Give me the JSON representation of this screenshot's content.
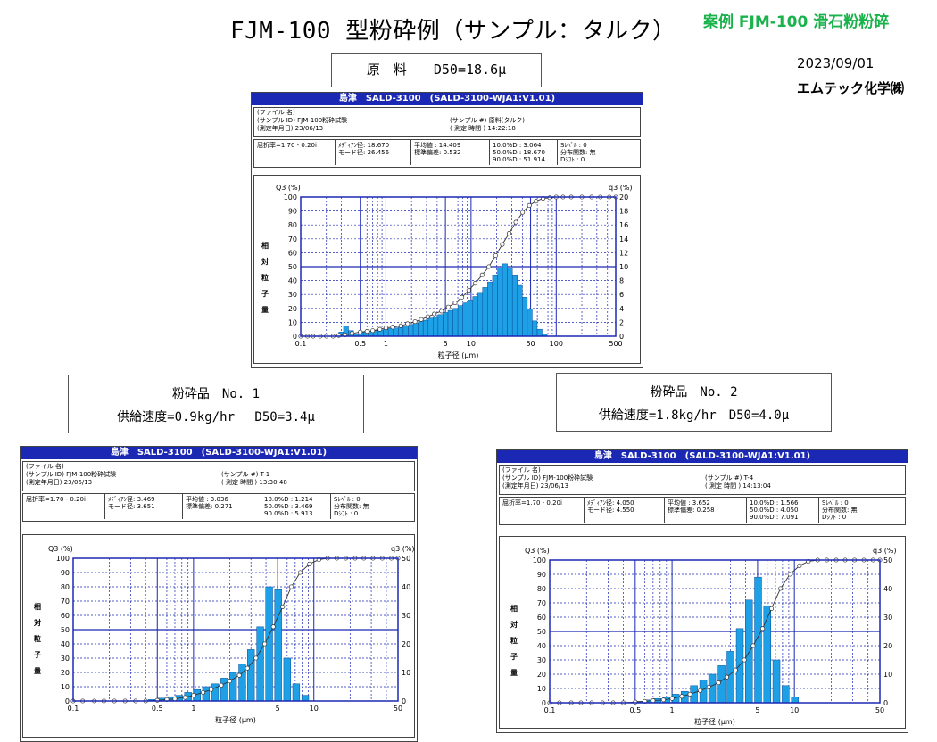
{
  "header": {
    "title": "FJM-100 型粉砕例（サンプル：タルク）",
    "top_right": "案例 FJM-100 滑石粉粉碎",
    "date": "2023/09/01",
    "company": "エムテック化学㈱"
  },
  "boxes": {
    "raw": "原　料　　D50=18.6μ",
    "p1_line1": "粉砕品　No. 1",
    "p1_line2": "供給速度=0.9kg/hr　 D50=3.4μ",
    "p2_line1": "粉砕品　No. 2",
    "p2_line2": "供給速度=1.8kg/hr　D50=4.0μ"
  },
  "panels": [
    {
      "header": "島津　SALD-3100　(SALD-3100-WJA1:V1.01)",
      "info_lines": [
        "(ファイル 名)",
        "(サンプル ID) FJM-100粉砕試験",
        "(測定年月日) 23/06/13"
      ],
      "sample_no": "(サンプル #) 原料(タルク)",
      "meas_time": "( 測定 時間 ) 14:22:18",
      "refr": "屈折率=1.70 - 0.20i",
      "stats1": [
        "ﾒﾃﾞｨｱﾝ径:  18.670",
        "モード径:  26.456"
      ],
      "stats2": [
        "平均値  :  14.409",
        "標準偏差:   0.532"
      ],
      "stats3": [
        "10.0%D :     3.064",
        "50.0%D :   18.670",
        "90.0%D :   51.914"
      ],
      "stats4": [
        "Sﾚﾍﾞﾙ   : 0",
        "分布関数: 無",
        "Dｼﾌﾄ     : 0"
      ]
    },
    {
      "header": "島津　SALD-3100　(SALD-3100-WJA1:V1.01)",
      "info_lines": [
        "(ファイル 名)",
        "(サンプル ID) FJM-100粉砕試験",
        "(測定年月日) 23/06/13"
      ],
      "sample_no": "(サンプル #) T-1",
      "meas_time": "( 測定 時間 ) 13:30:48",
      "refr": "屈折率=1.70 - 0.20i",
      "stats1": [
        "ﾒﾃﾞｨｱﾝ径:  3.469",
        "モード径:  3.651"
      ],
      "stats2": [
        "平均値  :  3.036",
        "標準偏差:  0.271"
      ],
      "stats3": [
        "10.0%D :   1.214",
        "50.0%D :   3.469",
        "90.0%D :   5.913"
      ],
      "stats4": [
        "Sﾚﾍﾞﾙ   : 0",
        "分布関数: 無",
        "Dｼﾌﾄ     : 0"
      ]
    },
    {
      "header": "島津　SALD-3100　(SALD-3100-WJA1:V1.01)",
      "info_lines": [
        "(ファイル 名)",
        "(サンプル ID) FJM-100粉砕試験",
        "(測定年月日) 23/06/13"
      ],
      "sample_no": "(サンプル #) T-4",
      "meas_time": "( 測定 時間 ) 14:13:04",
      "refr": "屈折率=1.70 - 0.20i",
      "stats1": [
        "ﾒﾃﾞｨｱﾝ径:  4.050",
        "モード径:  4.550"
      ],
      "stats2": [
        "平均値  :  3.652",
        "標準偏差:  0.258"
      ],
      "stats3": [
        "10.0%D :   1.566",
        "50.0%D :   4.050",
        "90.0%D :   7.091"
      ],
      "stats4": [
        "Sﾚﾍﾞﾙ   : 0",
        "分布関数: 無",
        "Dｼﾌﾄ     : 0"
      ]
    }
  ],
  "chart_data": [
    {
      "type": "bar",
      "ylabel_left": "Q3 (%)",
      "ylabel_right": "q3 (%)",
      "ylabel_vertical": "相対粒子量",
      "xlabel": "粒子径 (μm)",
      "x_scale": "log",
      "xlim": [
        0.1,
        500
      ],
      "ylim_left": [
        0,
        100
      ],
      "ylim_right": [
        0,
        20
      ],
      "x_ticks": [
        "0.1",
        "0.5",
        "1",
        "5",
        "10",
        "50",
        "100",
        "500"
      ],
      "y_ticks_left": [
        "0",
        "10",
        "20",
        "30",
        "40",
        "50",
        "60",
        "70",
        "80",
        "90",
        "100"
      ],
      "y_ticks_right": [
        "0",
        "2",
        "4",
        "6",
        "8",
        "10",
        "12",
        "14",
        "16",
        "18",
        "20"
      ],
      "bar_color": "#1ea0e6",
      "grid": true,
      "bars_x": [
        0.3,
        0.34,
        0.39,
        0.45,
        0.51,
        0.58,
        0.66,
        0.76,
        0.87,
        1.0,
        1.14,
        1.31,
        1.5,
        1.71,
        1.96,
        2.24,
        2.56,
        2.93,
        3.35,
        3.83,
        4.38,
        5.01,
        5.73,
        6.55,
        7.49,
        8.57,
        9.8,
        11.2,
        12.8,
        14.6,
        16.7,
        19.1,
        21.9,
        25.0,
        28.6,
        32.7,
        37.4,
        42.8,
        48.9,
        55.9,
        63.9,
        73.1
      ],
      "bars_q": [
        0.6,
        1.5,
        0.8,
        0.3,
        0.6,
        0.6,
        0.7,
        0.8,
        0.9,
        1.0,
        1.1,
        1.2,
        1.3,
        1.5,
        1.7,
        1.9,
        2.1,
        2.3,
        2.6,
        2.8,
        3.1,
        3.4,
        3.7,
        4.0,
        4.4,
        4.8,
        5.2,
        5.7,
        6.3,
        7.0,
        7.8,
        8.8,
        9.8,
        10.4,
        9.8,
        8.8,
        7.3,
        5.6,
        3.9,
        2.2,
        1.0,
        0.3
      ],
      "cum_x": [
        0.1,
        0.12,
        0.14,
        0.17,
        0.2,
        0.24,
        0.28,
        0.33,
        0.4,
        0.5,
        0.6,
        0.7,
        0.85,
        1.0,
        1.2,
        1.5,
        1.8,
        2.2,
        2.6,
        3.1,
        3.7,
        4.5,
        5.4,
        6.5,
        7.8,
        9.4,
        11.2,
        13.5,
        16.2,
        19.4,
        23.3,
        28,
        33.6,
        40.3,
        48.4,
        58,
        70,
        84,
        100,
        120,
        150,
        200,
        260,
        330,
        420,
        500
      ],
      "cum_y": [
        0,
        0,
        0,
        0,
        0,
        0,
        0.5,
        1,
        2,
        3,
        3.5,
        4,
        5,
        6,
        6.5,
        7.5,
        9,
        10.5,
        12,
        14,
        16,
        18,
        21,
        24,
        28,
        33,
        38,
        44,
        50,
        58,
        66,
        74,
        82,
        89,
        94,
        97,
        99,
        99.5,
        100,
        100,
        100,
        100,
        100,
        100,
        100,
        100
      ]
    },
    {
      "type": "bar",
      "ylabel_left": "Q3 (%)",
      "ylabel_right": "q3 (%)",
      "ylabel_vertical": "相対粒子量",
      "xlabel": "粒子径 (μm)",
      "x_scale": "log",
      "xlim": [
        0.1,
        50
      ],
      "ylim_left": [
        0,
        100
      ],
      "ylim_right": [
        0,
        50
      ],
      "x_ticks": [
        "0.1",
        "0.5",
        "1",
        "5",
        "10",
        "50"
      ],
      "y_ticks_left": [
        "0",
        "10",
        "20",
        "30",
        "40",
        "50",
        "60",
        "70",
        "80",
        "90",
        "100"
      ],
      "y_ticks_right": [
        "0",
        "10",
        "20",
        "30",
        "40",
        "50"
      ],
      "bar_color": "#1ea0e6",
      "grid": true,
      "bars_x": [
        0.45,
        0.54,
        0.64,
        0.76,
        0.9,
        1.07,
        1.27,
        1.51,
        1.8,
        2.13,
        2.54,
        3.0,
        3.58,
        4.25,
        5.05,
        6.0,
        7.13,
        8.48
      ],
      "bars_q": [
        0.5,
        1.0,
        1.5,
        2.0,
        3.0,
        4.0,
        5.0,
        6.0,
        8.0,
        10.0,
        13.0,
        18.0,
        26.0,
        40.0,
        39.0,
        15.0,
        6.0,
        2.0
      ],
      "cum_x": [
        0.1,
        0.12,
        0.15,
        0.18,
        0.22,
        0.27,
        0.33,
        0.4,
        0.5,
        0.6,
        0.7,
        0.85,
        1.0,
        1.2,
        1.4,
        1.7,
        2.0,
        2.4,
        2.8,
        3.3,
        3.9,
        4.6,
        5.5,
        6.5,
        7.7,
        9.2,
        11,
        13,
        15.5,
        18.4,
        22,
        26,
        31,
        37,
        44,
        50
      ],
      "cum_y": [
        0,
        0,
        0,
        0,
        0,
        0,
        0,
        0,
        0.5,
        1,
        1.5,
        2.5,
        4,
        6,
        8,
        11,
        14,
        18,
        23,
        30,
        40,
        52,
        66,
        80,
        90,
        96,
        99,
        100,
        100,
        100,
        100,
        100,
        100,
        100,
        100,
        100
      ]
    },
    {
      "type": "bar",
      "ylabel_left": "Q3 (%)",
      "ylabel_right": "q3 (%)",
      "ylabel_vertical": "相対粒子量",
      "xlabel": "粒子径 (μm)",
      "x_scale": "log",
      "xlim": [
        0.1,
        50
      ],
      "ylim_left": [
        0,
        100
      ],
      "ylim_right": [
        0,
        50
      ],
      "x_ticks": [
        "0.1",
        "0.5",
        "1",
        "5",
        "10",
        "50"
      ],
      "y_ticks_left": [
        "0",
        "10",
        "20",
        "30",
        "40",
        "50",
        "60",
        "70",
        "80",
        "90",
        "100"
      ],
      "y_ticks_right": [
        "0",
        "10",
        "20",
        "30",
        "40",
        "50"
      ],
      "bar_color": "#1ea0e6",
      "grid": true,
      "bars_x": [
        0.54,
        0.64,
        0.76,
        0.9,
        1.07,
        1.27,
        1.51,
        1.8,
        2.13,
        2.54,
        3.0,
        3.58,
        4.25,
        5.05,
        6.0,
        7.13,
        8.48,
        10.1
      ],
      "bars_q": [
        0.5,
        1.0,
        1.5,
        2.0,
        3.0,
        4.0,
        6.0,
        8.0,
        10.0,
        13.0,
        18.0,
        26.0,
        36.0,
        44.0,
        34.0,
        15.0,
        6.0,
        2.0
      ],
      "cum_x": [
        0.1,
        0.12,
        0.15,
        0.18,
        0.22,
        0.27,
        0.33,
        0.4,
        0.5,
        0.6,
        0.7,
        0.85,
        1.0,
        1.2,
        1.4,
        1.7,
        2.0,
        2.4,
        2.8,
        3.3,
        3.9,
        4.6,
        5.5,
        6.5,
        7.7,
        9.2,
        11,
        13,
        15.5,
        18.4,
        22,
        26,
        31,
        37,
        44,
        50
      ],
      "cum_y": [
        0,
        0,
        0,
        0,
        0,
        0,
        0,
        0,
        0.5,
        1,
        1.5,
        2,
        3,
        4.5,
        6,
        8.5,
        11,
        14,
        18,
        23,
        30,
        40,
        52,
        66,
        80,
        90,
        96,
        99,
        100,
        100,
        100,
        100,
        100,
        100,
        100,
        100
      ]
    }
  ]
}
